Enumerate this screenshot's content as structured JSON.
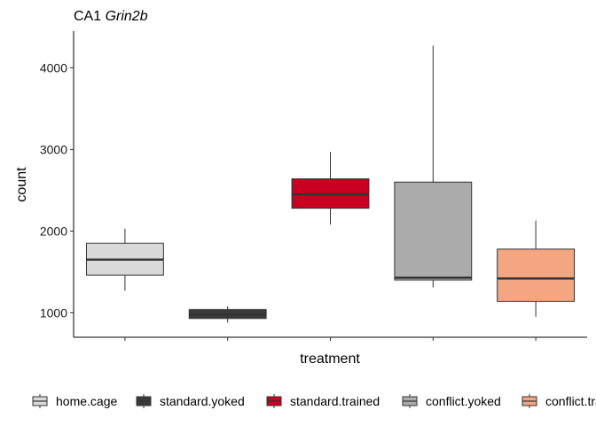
{
  "chart_data": {
    "type": "boxplot",
    "title": {
      "prefix": "CA1 ",
      "gene": "Grin2b"
    },
    "xlabel": "treatment",
    "ylabel": "count",
    "ylim": [
      700,
      4450
    ],
    "yticks": [
      1000,
      2000,
      3000,
      4000
    ],
    "grid": false,
    "legend_position": "bottom",
    "categories": [
      "home.cage",
      "standard.yoked",
      "standard.trained",
      "conflict.yoked",
      "conflict.trained"
    ],
    "series": [
      {
        "name": "home.cage",
        "color": "#d9d9d9",
        "stats": {
          "min": 1270,
          "q1": 1460,
          "median": 1650,
          "q3": 1850,
          "max": 2030
        }
      },
      {
        "name": "standard.yoked",
        "color": "#3a3a3a",
        "stats": {
          "min": 880,
          "q1": 930,
          "median": 980,
          "q3": 1040,
          "max": 1080
        }
      },
      {
        "name": "standard.trained",
        "color": "#ca0020",
        "stats": {
          "min": 2080,
          "q1": 2280,
          "median": 2450,
          "q3": 2640,
          "max": 2970
        }
      },
      {
        "name": "conflict.yoked",
        "color": "#ababab",
        "stats": {
          "min": 1310,
          "q1": 1400,
          "median": 1430,
          "q3": 2600,
          "max": 4270
        }
      },
      {
        "name": "conflict.trained",
        "color": "#f4a582",
        "stats": {
          "min": 950,
          "q1": 1140,
          "median": 1420,
          "q3": 1780,
          "max": 2130
        }
      }
    ]
  }
}
